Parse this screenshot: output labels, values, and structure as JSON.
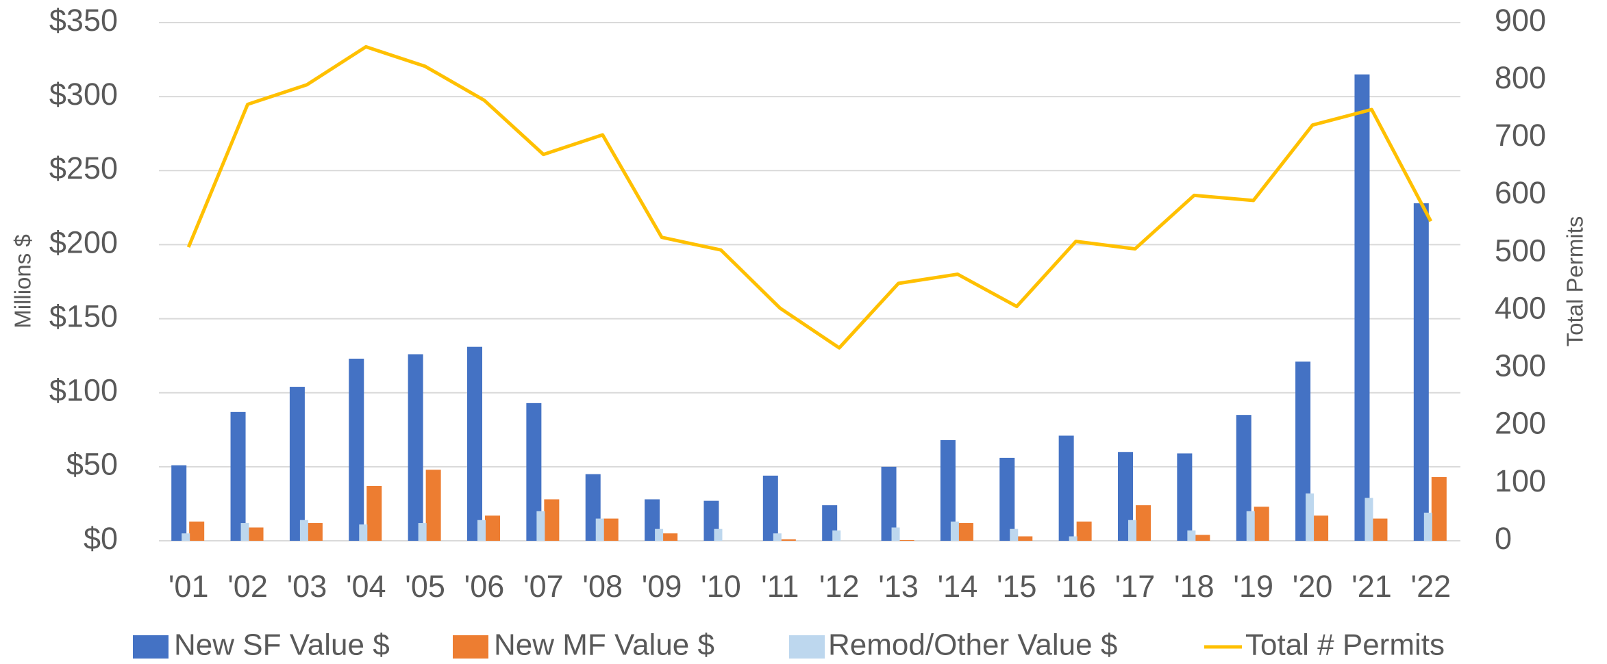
{
  "chart_data": {
    "type": "bar",
    "y_label": "Millions $",
    "y2_label": "Total Permits",
    "categories": [
      "'01",
      "'02",
      "'03",
      "'04",
      "'05",
      "'06",
      "'07",
      "'08",
      "'09",
      "'10",
      "'11",
      "'12",
      "'13",
      "'14",
      "'15",
      "'16",
      "'17",
      "'18",
      "'19",
      "'20",
      "'21",
      "'22"
    ],
    "series": [
      {
        "name": "New SF Value $",
        "color": "#4472c4",
        "values": [
          51,
          87,
          104,
          123,
          126,
          131,
          93,
          45,
          28,
          27,
          44,
          24,
          50,
          68,
          56,
          71,
          60,
          59,
          85,
          121,
          315,
          228
        ]
      },
      {
        "name": "New MF Value $",
        "color": "#ed7d31",
        "values": [
          13,
          9,
          12,
          37,
          48,
          17,
          28,
          15,
          5,
          0,
          1,
          0,
          0.5,
          12,
          3,
          13,
          24,
          4,
          23,
          17,
          15,
          43
        ]
      },
      {
        "name": "Remod/Other Value $",
        "color": "#bdd7ee",
        "values": [
          5,
          12,
          14,
          11,
          12,
          14,
          20,
          15,
          8,
          8,
          5,
          7,
          9,
          13,
          8,
          3,
          14,
          7,
          20,
          32,
          29,
          19
        ]
      },
      {
        "name": "Total # Permits",
        "color": "#ffc000",
        "type": "line",
        "axis": "y2",
        "values": [
          510,
          758,
          792,
          858,
          824,
          765,
          671,
          705,
          527,
          505,
          404,
          335,
          447,
          463,
          407,
          520,
          507,
          600,
          591,
          722,
          749,
          555
        ]
      }
    ],
    "ylim": [
      0,
      350
    ],
    "yticks": [
      {
        "value": 0,
        "label": "$0"
      },
      {
        "value": 50,
        "label": "$50"
      },
      {
        "value": 100,
        "label": "$100"
      },
      {
        "value": 150,
        "label": "$150"
      },
      {
        "value": 200,
        "label": "$200"
      },
      {
        "value": 250,
        "label": "$250"
      },
      {
        "value": 300,
        "label": "$300"
      },
      {
        "value": 350,
        "label": "$350"
      }
    ],
    "y2lim": [
      0,
      900
    ],
    "y2ticks": [
      0,
      100,
      200,
      300,
      400,
      500,
      600,
      700,
      800,
      900
    ],
    "grid": true,
    "legend": "bottom"
  }
}
